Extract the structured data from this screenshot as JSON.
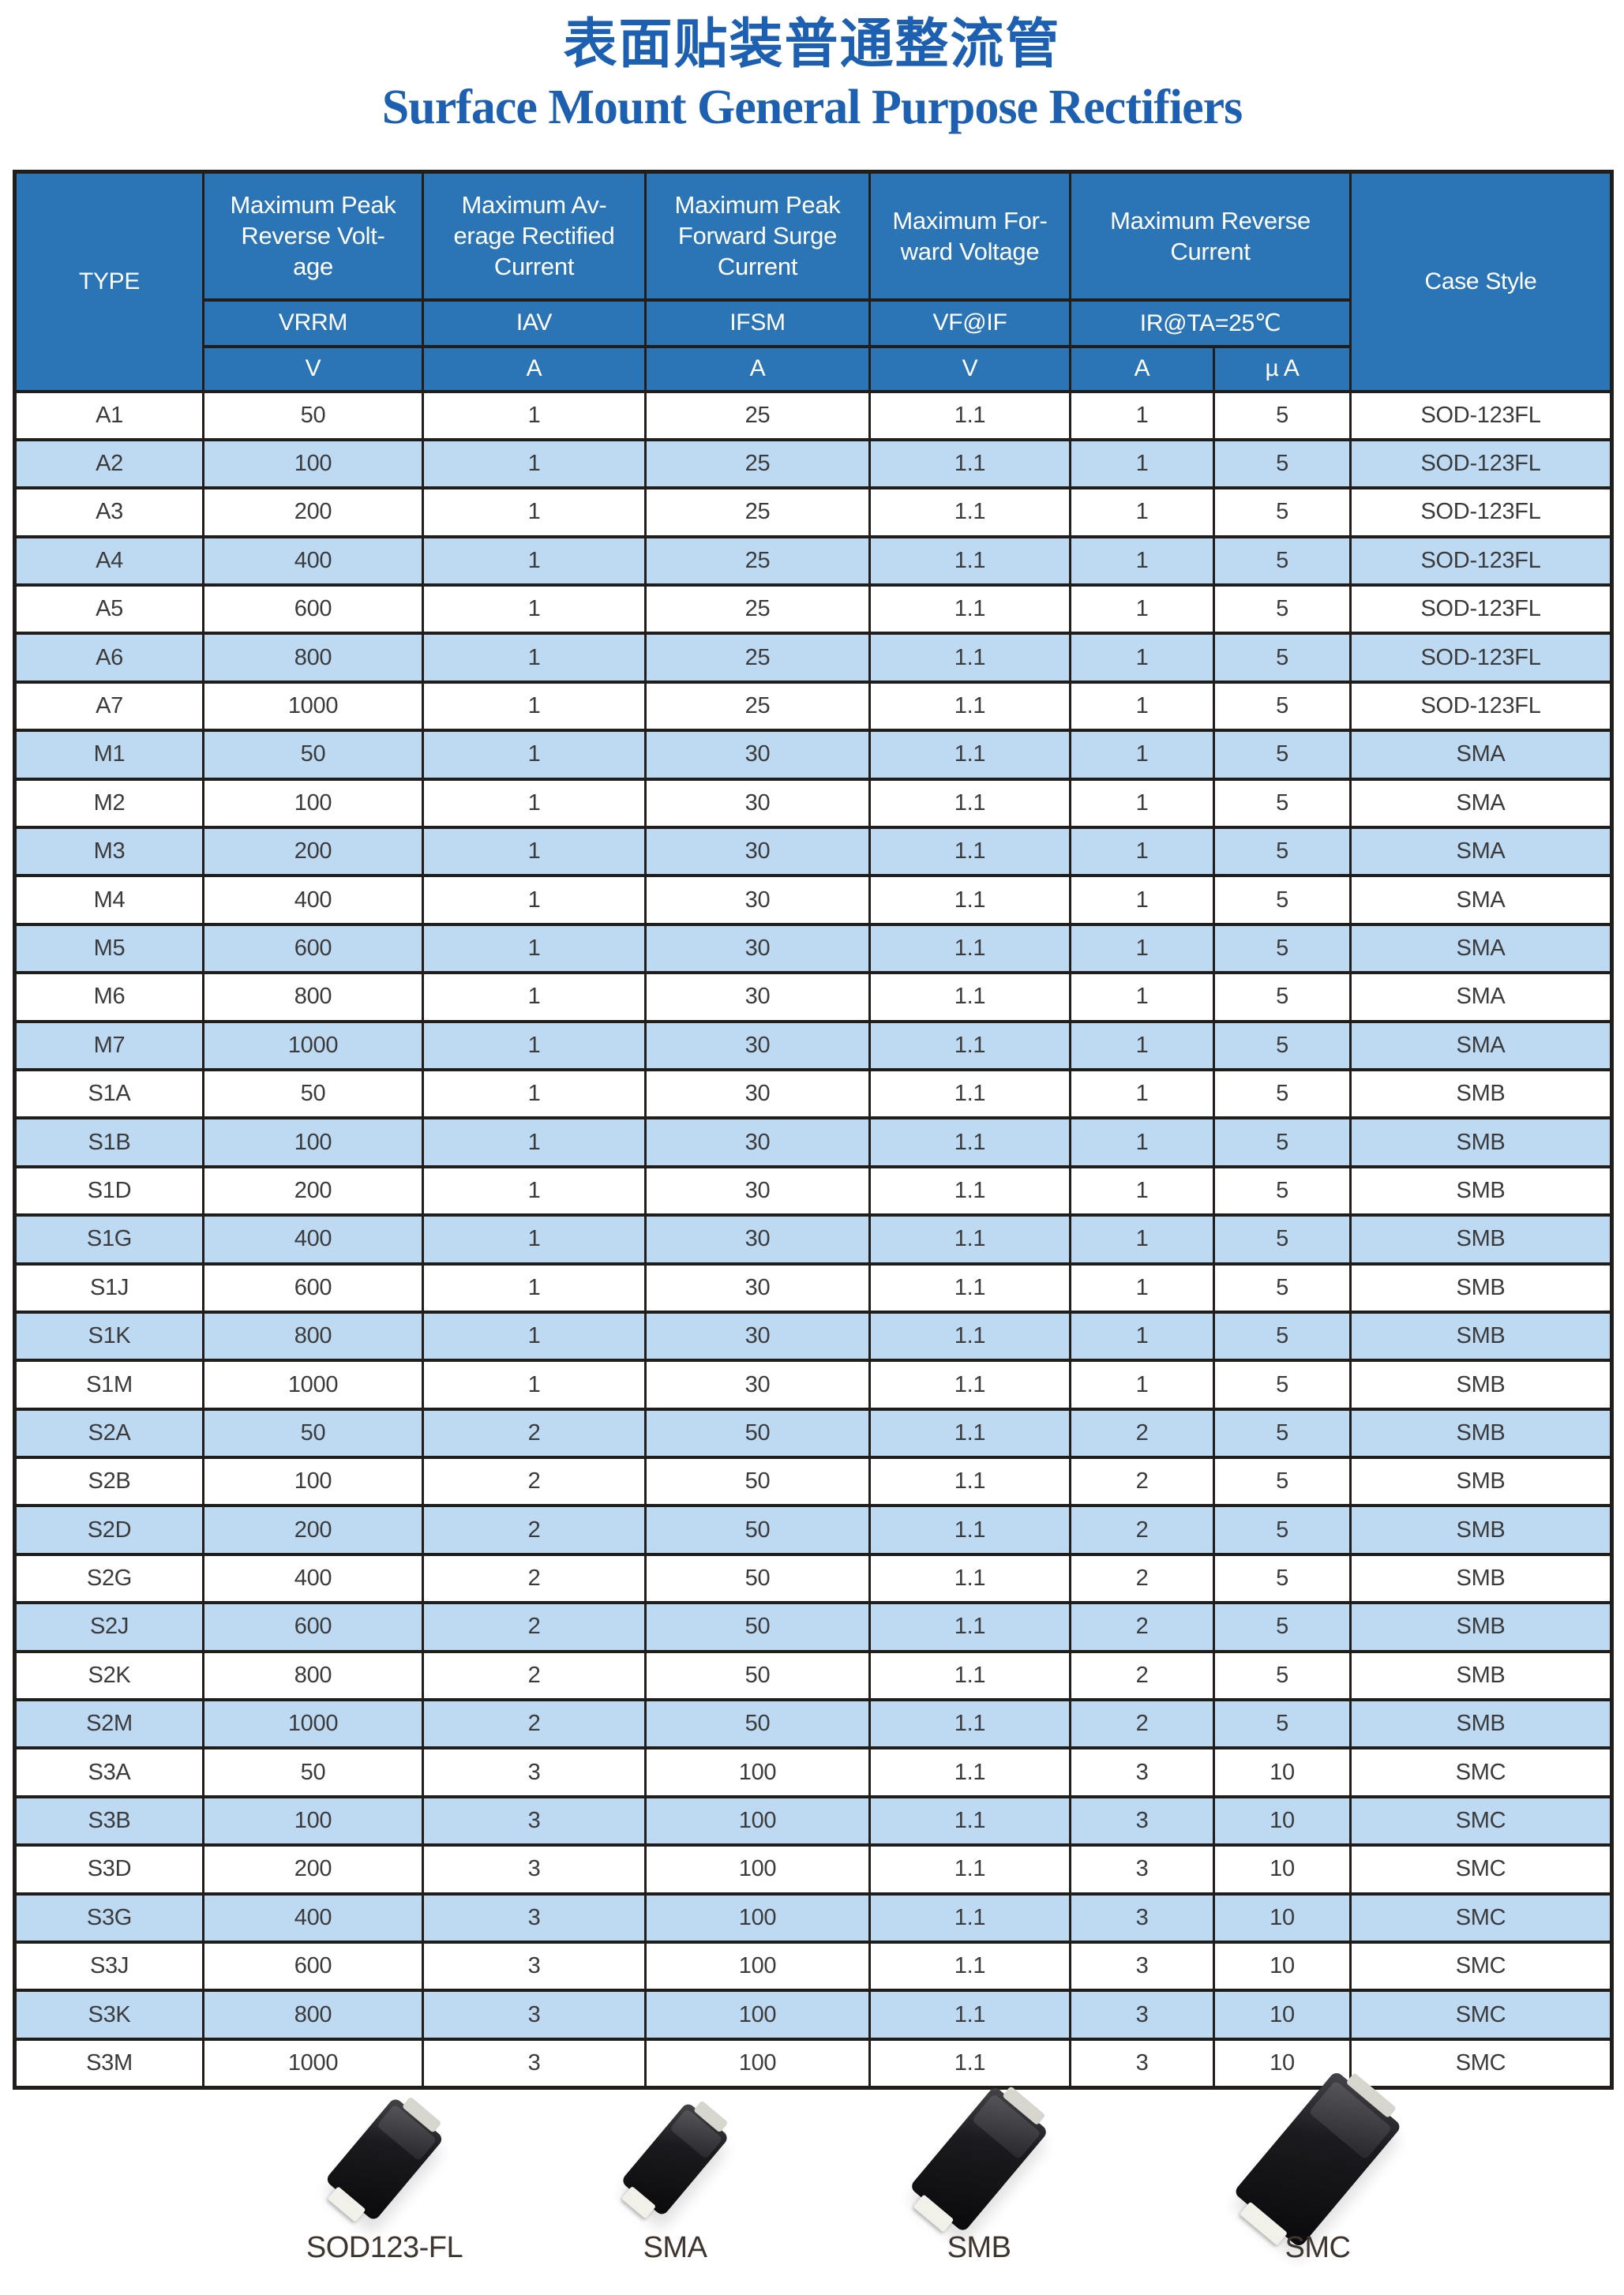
{
  "title_cn": "表面贴装普通整流管",
  "title_en": "Surface Mount General Purpose Rectifiers",
  "colors": {
    "header_bg": "#2b75b7",
    "stripe_bg": "#bedaf3",
    "border": "#211d1a",
    "title_blue": "#1d60b2"
  },
  "table": {
    "header": {
      "type_label": "TYPE",
      "case_label": "Case Style",
      "groups": [
        {
          "title": "Maximum Peak\nReverse Volt-\nage",
          "symbol": "VRRM",
          "unit": "V"
        },
        {
          "title": "Maximum Av-\nerage Rectified\nCurrent",
          "symbol": "IAV",
          "unit": "A"
        },
        {
          "title": "Maximum Peak\nForward Surge\nCurrent",
          "symbol": "IFSM",
          "unit": "A"
        },
        {
          "title": "Maximum For-\nward Voltage",
          "symbol": "VF@IF",
          "unit": "V"
        },
        {
          "title": "Maximum Reverse\nCurrent",
          "symbol": "IR@TA=25℃",
          "units": [
            "A",
            "µ A"
          ]
        }
      ],
      "column_keys": [
        "type",
        "vrrm",
        "iav",
        "ifsm",
        "vf",
        "ir-a",
        "ir-ua",
        "case"
      ]
    },
    "rows": [
      [
        "A1",
        "50",
        "1",
        "25",
        "1.1",
        "1",
        "5",
        "SOD-123FL"
      ],
      [
        "A2",
        "100",
        "1",
        "25",
        "1.1",
        "1",
        "5",
        "SOD-123FL"
      ],
      [
        "A3",
        "200",
        "1",
        "25",
        "1.1",
        "1",
        "5",
        "SOD-123FL"
      ],
      [
        "A4",
        "400",
        "1",
        "25",
        "1.1",
        "1",
        "5",
        "SOD-123FL"
      ],
      [
        "A5",
        "600",
        "1",
        "25",
        "1.1",
        "1",
        "5",
        "SOD-123FL"
      ],
      [
        "A6",
        "800",
        "1",
        "25",
        "1.1",
        "1",
        "5",
        "SOD-123FL"
      ],
      [
        "A7",
        "1000",
        "1",
        "25",
        "1.1",
        "1",
        "5",
        "SOD-123FL"
      ],
      [
        "M1",
        "50",
        "1",
        "30",
        "1.1",
        "1",
        "5",
        "SMA"
      ],
      [
        "M2",
        "100",
        "1",
        "30",
        "1.1",
        "1",
        "5",
        "SMA"
      ],
      [
        "M3",
        "200",
        "1",
        "30",
        "1.1",
        "1",
        "5",
        "SMA"
      ],
      [
        "M4",
        "400",
        "1",
        "30",
        "1.1",
        "1",
        "5",
        "SMA"
      ],
      [
        "M5",
        "600",
        "1",
        "30",
        "1.1",
        "1",
        "5",
        "SMA"
      ],
      [
        "M6",
        "800",
        "1",
        "30",
        "1.1",
        "1",
        "5",
        "SMA"
      ],
      [
        "M7",
        "1000",
        "1",
        "30",
        "1.1",
        "1",
        "5",
        "SMA"
      ],
      [
        "S1A",
        "50",
        "1",
        "30",
        "1.1",
        "1",
        "5",
        "SMB"
      ],
      [
        "S1B",
        "100",
        "1",
        "30",
        "1.1",
        "1",
        "5",
        "SMB"
      ],
      [
        "S1D",
        "200",
        "1",
        "30",
        "1.1",
        "1",
        "5",
        "SMB"
      ],
      [
        "S1G",
        "400",
        "1",
        "30",
        "1.1",
        "1",
        "5",
        "SMB"
      ],
      [
        "S1J",
        "600",
        "1",
        "30",
        "1.1",
        "1",
        "5",
        "SMB"
      ],
      [
        "S1K",
        "800",
        "1",
        "30",
        "1.1",
        "1",
        "5",
        "SMB"
      ],
      [
        "S1M",
        "1000",
        "1",
        "30",
        "1.1",
        "1",
        "5",
        "SMB"
      ],
      [
        "S2A",
        "50",
        "2",
        "50",
        "1.1",
        "2",
        "5",
        "SMB"
      ],
      [
        "S2B",
        "100",
        "2",
        "50",
        "1.1",
        "2",
        "5",
        "SMB"
      ],
      [
        "S2D",
        "200",
        "2",
        "50",
        "1.1",
        "2",
        "5",
        "SMB"
      ],
      [
        "S2G",
        "400",
        "2",
        "50",
        "1.1",
        "2",
        "5",
        "SMB"
      ],
      [
        "S2J",
        "600",
        "2",
        "50",
        "1.1",
        "2",
        "5",
        "SMB"
      ],
      [
        "S2K",
        "800",
        "2",
        "50",
        "1.1",
        "2",
        "5",
        "SMB"
      ],
      [
        "S2M",
        "1000",
        "2",
        "50",
        "1.1",
        "2",
        "5",
        "SMB"
      ],
      [
        "S3A",
        "50",
        "3",
        "100",
        "1.1",
        "3",
        "10",
        "SMC"
      ],
      [
        "S3B",
        "100",
        "3",
        "100",
        "1.1",
        "3",
        "10",
        "SMC"
      ],
      [
        "S3D",
        "200",
        "3",
        "100",
        "1.1",
        "3",
        "10",
        "SMC"
      ],
      [
        "S3G",
        "400",
        "3",
        "100",
        "1.1",
        "3",
        "10",
        "SMC"
      ],
      [
        "S3J",
        "600",
        "3",
        "100",
        "1.1",
        "3",
        "10",
        "SMC"
      ],
      [
        "S3K",
        "800",
        "3",
        "100",
        "1.1",
        "3",
        "10",
        "SMC"
      ],
      [
        "S3M",
        "1000",
        "3",
        "100",
        "1.1",
        "3",
        "10",
        "SMC"
      ]
    ]
  },
  "packages": [
    {
      "label": "SOD123-FL"
    },
    {
      "label": "SMA"
    },
    {
      "label": "SMB"
    },
    {
      "label": "SMC"
    }
  ]
}
